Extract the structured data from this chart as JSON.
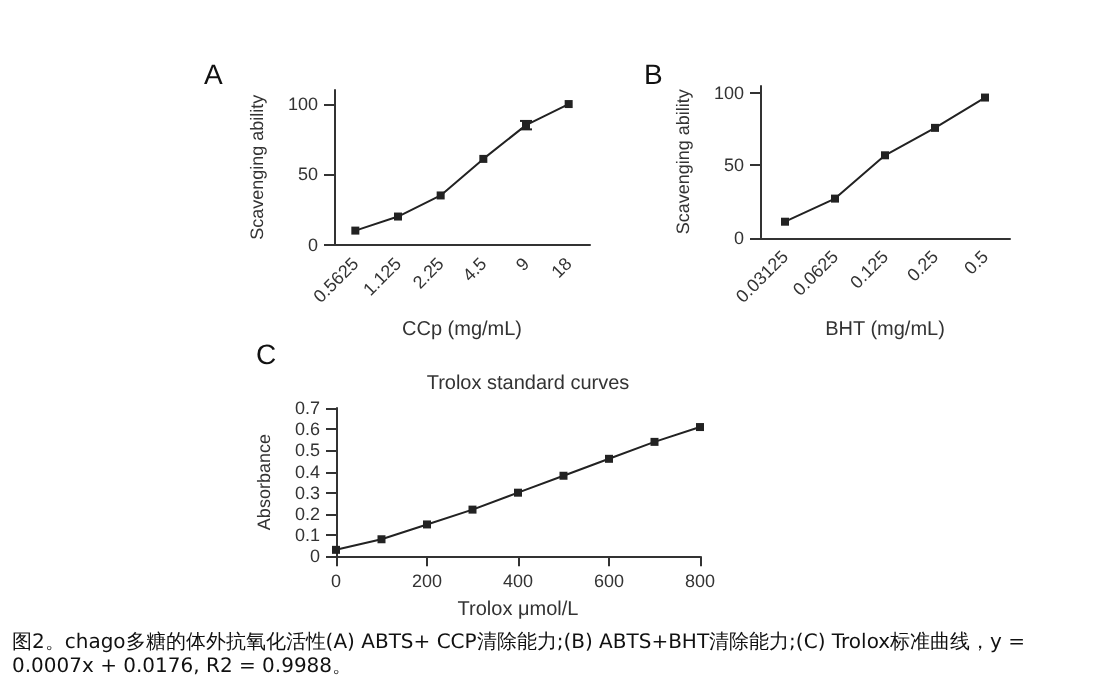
{
  "chart_data": [
    {
      "type": "line",
      "annotations": [
        "A"
      ],
      "xlabel": "CCp (mg/mL)",
      "ylabel": "Scavenging ability",
      "categories": [
        "0.5625",
        "1.125",
        "2.25",
        "4.5",
        "9",
        "18"
      ],
      "series": [
        {
          "color": "#222222",
          "values": [
            10,
            20,
            35,
            61,
            85,
            100
          ],
          "errors": [
            null,
            null,
            null,
            null,
            3,
            null
          ]
        }
      ],
      "ylim": [
        0,
        110
      ],
      "yticks": [
        0,
        50,
        100
      ],
      "grid": false,
      "marker": "square",
      "line_style": "solid"
    },
    {
      "type": "line",
      "annotations": [
        "B"
      ],
      "xlabel": "BHT (mg/mL)",
      "ylabel": "Scavenging ability",
      "categories": [
        "0.03125",
        "0.0625",
        "0.125",
        "0.25",
        "0.5"
      ],
      "series": [
        {
          "color": "#222222",
          "values": [
            11,
            27,
            57,
            76,
            97
          ]
        }
      ],
      "ylim": [
        0,
        105
      ],
      "yticks": [
        0,
        50,
        100
      ],
      "grid": false,
      "marker": "square",
      "line_style": "solid"
    },
    {
      "type": "line",
      "title": "Trolox standard curves",
      "annotations": [
        "C",
        "图2。chago多糖的体外抗氧化活性(A) ABTS+ CCP清除能力;(B) ABTS+BHT清除能力;(C) Trolox标准曲线，y = 0.0007x + 0.0176, R2 = 0.9988。"
      ],
      "xlabel": "Trolox μmol/L",
      "ylabel": "Absorbance",
      "x": [
        0,
        100,
        200,
        300,
        400,
        500,
        600,
        700,
        800
      ],
      "series": [
        {
          "color": "#222222",
          "values": [
            0.03,
            0.08,
            0.15,
            0.22,
            0.3,
            0.38,
            0.46,
            0.54,
            0.61
          ]
        }
      ],
      "xlim": [
        0,
        800
      ],
      "xticks": [
        0,
        200,
        400,
        600,
        800
      ],
      "ylim": [
        0,
        0.7
      ],
      "yticks": [
        0,
        0.1,
        0.2,
        0.3,
        0.4,
        0.5,
        0.6,
        0.7
      ],
      "grid": false,
      "marker": "square",
      "line_style": "solid"
    }
  ]
}
